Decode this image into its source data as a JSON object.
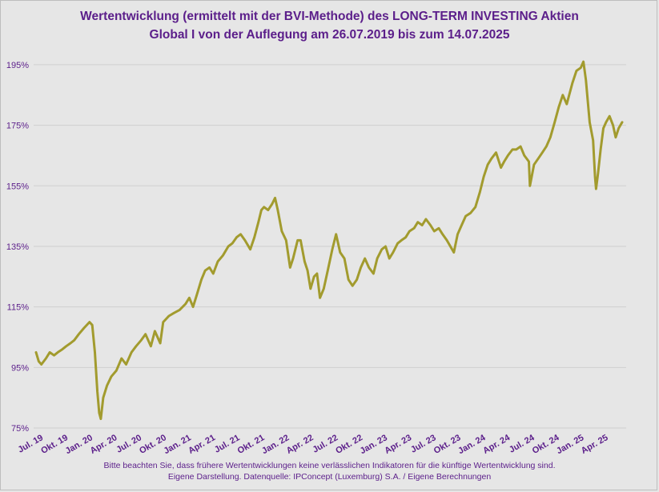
{
  "title_line1": "Wertentwicklung (ermittelt mit der BVI-Methode) des LONG-TERM INVESTING Aktien",
  "title_line2": "Global I von der Auflegung am 26.07.2019  bis zum 14.07.2025",
  "footer_line1": "Bitte  beachten Sie, dass frühere Wertentwicklungen keine verlässlichen Indikatoren für die künftige Wertentwicklung sind.",
  "footer_line2": "Eigene Darstellung. Datenquelle: IPConcept (Luxemburg) S.A. / Eigene Berechnungen",
  "colors": {
    "line": "#a29b2e",
    "text": "#5b1e8a",
    "grid": "#cfcfcf",
    "background": "#e6e6e6"
  },
  "chart_data": {
    "type": "line",
    "title": "Wertentwicklung (ermittelt mit der BVI-Methode) des LONG-TERM INVESTING Aktien Global I von der Auflegung am 26.07.2019  bis zum 14.07.2025",
    "xlabel": "",
    "ylabel": "",
    "ylim": [
      75,
      200
    ],
    "yticks": [
      75,
      95,
      115,
      135,
      155,
      175,
      195
    ],
    "ytick_labels": [
      "75%",
      "95%",
      "115%",
      "135%",
      "155%",
      "175%",
      "195%"
    ],
    "xticks": [
      {
        "date": "2019-07-01",
        "label": "Jul. 19"
      },
      {
        "date": "2019-10-01",
        "label": "Okt. 19"
      },
      {
        "date": "2020-01-01",
        "label": "Jan. 20"
      },
      {
        "date": "2020-04-01",
        "label": "Apr. 20"
      },
      {
        "date": "2020-07-01",
        "label": "Jul. 20"
      },
      {
        "date": "2020-10-01",
        "label": "Okt. 20"
      },
      {
        "date": "2021-01-01",
        "label": "Jan. 21"
      },
      {
        "date": "2021-04-01",
        "label": "Apr. 21"
      },
      {
        "date": "2021-07-01",
        "label": "Jul. 21"
      },
      {
        "date": "2021-10-01",
        "label": "Okt. 21"
      },
      {
        "date": "2022-01-01",
        "label": "Jan. 22"
      },
      {
        "date": "2022-04-01",
        "label": "Apr. 22"
      },
      {
        "date": "2022-07-01",
        "label": "Jul. 22"
      },
      {
        "date": "2022-10-01",
        "label": "Okt. 22"
      },
      {
        "date": "2023-01-01",
        "label": "Jan. 23"
      },
      {
        "date": "2023-04-01",
        "label": "Apr. 23"
      },
      {
        "date": "2023-07-01",
        "label": "Jul. 23"
      },
      {
        "date": "2023-10-01",
        "label": "Okt. 23"
      },
      {
        "date": "2024-01-01",
        "label": "Jan. 24"
      },
      {
        "date": "2024-04-01",
        "label": "Apr. 24"
      },
      {
        "date": "2024-07-01",
        "label": "Jul. 24"
      },
      {
        "date": "2024-10-01",
        "label": "Okt. 24"
      },
      {
        "date": "2025-01-01",
        "label": "Jan. 25"
      },
      {
        "date": "2025-04-01",
        "label": "Apr. 25"
      }
    ],
    "grid": true,
    "series": [
      {
        "points": [
          [
            "2019-07-26",
            100
          ],
          [
            "2019-08-05",
            97
          ],
          [
            "2019-08-15",
            96
          ],
          [
            "2019-09-01",
            98
          ],
          [
            "2019-09-15",
            100
          ],
          [
            "2019-10-01",
            99
          ],
          [
            "2019-10-15",
            100
          ],
          [
            "2019-11-01",
            101
          ],
          [
            "2019-11-15",
            102
          ],
          [
            "2019-12-01",
            103
          ],
          [
            "2019-12-15",
            104
          ],
          [
            "2020-01-01",
            106
          ],
          [
            "2020-01-20",
            108
          ],
          [
            "2020-02-10",
            110
          ],
          [
            "2020-02-20",
            109
          ],
          [
            "2020-03-01",
            100
          ],
          [
            "2020-03-10",
            87
          ],
          [
            "2020-03-17",
            80
          ],
          [
            "2020-03-23",
            78
          ],
          [
            "2020-04-01",
            85
          ],
          [
            "2020-04-15",
            89
          ],
          [
            "2020-05-01",
            92
          ],
          [
            "2020-05-20",
            94
          ],
          [
            "2020-06-08",
            98
          ],
          [
            "2020-06-25",
            96
          ],
          [
            "2020-07-15",
            100
          ],
          [
            "2020-08-01",
            102
          ],
          [
            "2020-08-20",
            104
          ],
          [
            "2020-09-05",
            106
          ],
          [
            "2020-09-25",
            102
          ],
          [
            "2020-10-10",
            107
          ],
          [
            "2020-10-30",
            103
          ],
          [
            "2020-11-10",
            110
          ],
          [
            "2020-12-01",
            112
          ],
          [
            "2020-12-20",
            113
          ],
          [
            "2021-01-10",
            114
          ],
          [
            "2021-02-01",
            116
          ],
          [
            "2021-02-15",
            118
          ],
          [
            "2021-03-01",
            115
          ],
          [
            "2021-03-15",
            119
          ],
          [
            "2021-04-01",
            124
          ],
          [
            "2021-04-15",
            127
          ],
          [
            "2021-05-01",
            128
          ],
          [
            "2021-05-15",
            126
          ],
          [
            "2021-06-01",
            130
          ],
          [
            "2021-06-20",
            132
          ],
          [
            "2021-07-10",
            135
          ],
          [
            "2021-07-25",
            136
          ],
          [
            "2021-08-10",
            138
          ],
          [
            "2021-08-25",
            139
          ],
          [
            "2021-09-10",
            137
          ],
          [
            "2021-09-30",
            134
          ],
          [
            "2021-10-15",
            138
          ],
          [
            "2021-10-30",
            143
          ],
          [
            "2021-11-10",
            147
          ],
          [
            "2021-11-20",
            148
          ],
          [
            "2021-12-05",
            147
          ],
          [
            "2021-12-20",
            149
          ],
          [
            "2021-12-31",
            151
          ],
          [
            "2022-01-10",
            147
          ],
          [
            "2022-01-25",
            140
          ],
          [
            "2022-02-10",
            137
          ],
          [
            "2022-02-25",
            128
          ],
          [
            "2022-03-08",
            131
          ],
          [
            "2022-03-25",
            137
          ],
          [
            "2022-04-05",
            137
          ],
          [
            "2022-04-20",
            130
          ],
          [
            "2022-05-01",
            127
          ],
          [
            "2022-05-12",
            121
          ],
          [
            "2022-05-25",
            125
          ],
          [
            "2022-06-05",
            126
          ],
          [
            "2022-06-16",
            118
          ],
          [
            "2022-06-30",
            121
          ],
          [
            "2022-07-15",
            127
          ],
          [
            "2022-08-01",
            134
          ],
          [
            "2022-08-15",
            139
          ],
          [
            "2022-08-30",
            133
          ],
          [
            "2022-09-15",
            131
          ],
          [
            "2022-09-30",
            124
          ],
          [
            "2022-10-15",
            122
          ],
          [
            "2022-10-31",
            124
          ],
          [
            "2022-11-15",
            128
          ],
          [
            "2022-11-30",
            131
          ],
          [
            "2022-12-15",
            128
          ],
          [
            "2023-01-01",
            126
          ],
          [
            "2023-01-15",
            131
          ],
          [
            "2023-02-01",
            134
          ],
          [
            "2023-02-15",
            135
          ],
          [
            "2023-03-01",
            131
          ],
          [
            "2023-03-15",
            133
          ],
          [
            "2023-04-01",
            136
          ],
          [
            "2023-04-15",
            137
          ],
          [
            "2023-05-01",
            138
          ],
          [
            "2023-05-15",
            140
          ],
          [
            "2023-06-01",
            141
          ],
          [
            "2023-06-15",
            143
          ],
          [
            "2023-07-01",
            142
          ],
          [
            "2023-07-15",
            144
          ],
          [
            "2023-08-01",
            142
          ],
          [
            "2023-08-15",
            140
          ],
          [
            "2023-09-01",
            141
          ],
          [
            "2023-09-15",
            139
          ],
          [
            "2023-10-01",
            137
          ],
          [
            "2023-10-27",
            133
          ],
          [
            "2023-11-10",
            139
          ],
          [
            "2023-11-25",
            142
          ],
          [
            "2023-12-10",
            145
          ],
          [
            "2023-12-28",
            146
          ],
          [
            "2024-01-15",
            148
          ],
          [
            "2024-02-01",
            153
          ],
          [
            "2024-02-15",
            158
          ],
          [
            "2024-03-01",
            162
          ],
          [
            "2024-03-15",
            164
          ],
          [
            "2024-04-01",
            166
          ],
          [
            "2024-04-19",
            161
          ],
          [
            "2024-05-01",
            163
          ],
          [
            "2024-05-15",
            165
          ],
          [
            "2024-06-01",
            167
          ],
          [
            "2024-06-15",
            167
          ],
          [
            "2024-07-01",
            168
          ],
          [
            "2024-07-15",
            165
          ],
          [
            "2024-08-01",
            163
          ],
          [
            "2024-08-05",
            155
          ],
          [
            "2024-08-20",
            162
          ],
          [
            "2024-09-05",
            164
          ],
          [
            "2024-09-20",
            166
          ],
          [
            "2024-10-05",
            168
          ],
          [
            "2024-10-20",
            171
          ],
          [
            "2024-11-05",
            176
          ],
          [
            "2024-11-20",
            181
          ],
          [
            "2024-12-05",
            185
          ],
          [
            "2024-12-20",
            182
          ],
          [
            "2025-01-10",
            189
          ],
          [
            "2025-01-25",
            193
          ],
          [
            "2025-02-10",
            194
          ],
          [
            "2025-02-20",
            196
          ],
          [
            "2025-03-01",
            190
          ],
          [
            "2025-03-15",
            176
          ],
          [
            "2025-03-28",
            170
          ],
          [
            "2025-04-04",
            158
          ],
          [
            "2025-04-08",
            154
          ],
          [
            "2025-04-15",
            159
          ],
          [
            "2025-04-25",
            167
          ],
          [
            "2025-05-05",
            174
          ],
          [
            "2025-05-15",
            176
          ],
          [
            "2025-05-28",
            178
          ],
          [
            "2025-06-10",
            175
          ],
          [
            "2025-06-20",
            171
          ],
          [
            "2025-07-01",
            174
          ],
          [
            "2025-07-14",
            176
          ]
        ]
      }
    ]
  }
}
